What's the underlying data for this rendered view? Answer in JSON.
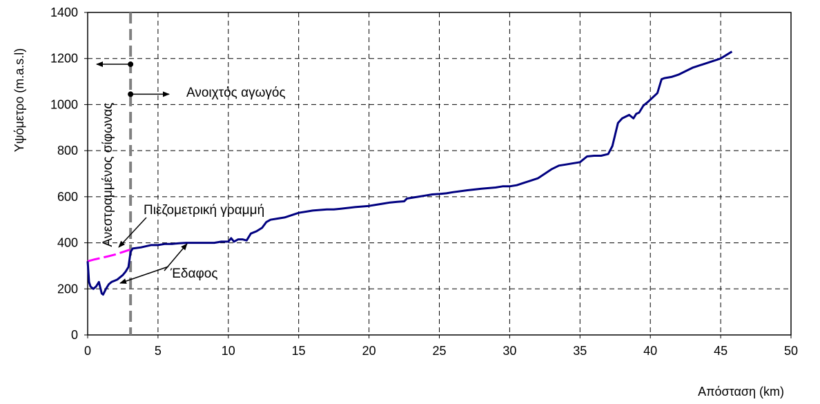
{
  "colors": {
    "ground": "#000080",
    "piezometric": "#ff00ff",
    "divider": "#808080",
    "axis": "#000000",
    "background": "#ffffff"
  },
  "chart_data": {
    "type": "line",
    "title": "",
    "xlabel": "Απόσταση (km)",
    "ylabel": "Υψόμετρο (m.a.s.l)",
    "xlim": [
      0,
      50
    ],
    "ylim": [
      0,
      1400
    ],
    "xticks": [
      "0",
      "5",
      "10",
      "15",
      "20",
      "25",
      "30",
      "35",
      "40",
      "45",
      "50"
    ],
    "yticks": [
      "0",
      "200",
      "400",
      "600",
      "800",
      "1000",
      "1200",
      "1400"
    ],
    "grid": true,
    "series": [
      {
        "name": "Έδαφος",
        "color": "#000080",
        "x": [
          0,
          0.1,
          0.2,
          0.4,
          0.6,
          0.8,
          1.0,
          1.1,
          1.3,
          1.5,
          1.7,
          1.9,
          2.1,
          2.3,
          2.5,
          2.7,
          2.9,
          3.05,
          3.2,
          3.8,
          4.5,
          5.0,
          5.5,
          6.0,
          6.5,
          7.0,
          7.5,
          8.0,
          9.0,
          9.5,
          10.0,
          10.2,
          10.4,
          10.7,
          11.0,
          11.3,
          11.6,
          12.0,
          12.4,
          12.7,
          13.0,
          13.5,
          14.0,
          15.0,
          16.0,
          17.0,
          17.5,
          18.0,
          19.0,
          20.0,
          20.5,
          21.0,
          21.5,
          22.0,
          22.5,
          22.7,
          23.0,
          23.5,
          24.0,
          24.5,
          25.0,
          25.5,
          26.0,
          27.0,
          28.0,
          29.0,
          29.5,
          30.0,
          30.5,
          31.0,
          32.0,
          32.5,
          33.0,
          33.5,
          34.0,
          35.0,
          35.5,
          36.0,
          36.5,
          37.0,
          37.3,
          37.7,
          38.0,
          38.5,
          38.8,
          39.0,
          39.2,
          39.5,
          39.6,
          39.8,
          40.5,
          40.8,
          41.0,
          41.5,
          42.0,
          42.5,
          43.0,
          44.0,
          45.0,
          45.8
        ],
        "y": [
          320,
          230,
          210,
          200,
          210,
          230,
          180,
          175,
          200,
          220,
          230,
          235,
          240,
          250,
          260,
          275,
          295,
          360,
          375,
          380,
          390,
          390,
          395,
          395,
          398,
          400,
          400,
          400,
          400,
          405,
          405,
          420,
          405,
          415,
          415,
          410,
          440,
          450,
          465,
          490,
          500,
          505,
          510,
          530,
          540,
          545,
          545,
          548,
          555,
          560,
          565,
          570,
          575,
          578,
          580,
          592,
          595,
          600,
          605,
          610,
          612,
          615,
          620,
          628,
          635,
          640,
          645,
          645,
          650,
          660,
          680,
          700,
          720,
          735,
          740,
          750,
          775,
          778,
          778,
          785,
          820,
          920,
          940,
          955,
          940,
          960,
          965,
          995,
          1000,
          1010,
          1050,
          1110,
          1115,
          1120,
          1130,
          1145,
          1160,
          1180,
          1200,
          1230
        ]
      },
      {
        "name": "Πιεζομετρική γραμμή",
        "color": "#ff00ff",
        "x": [
          0,
          0.5,
          1.0,
          1.5,
          2.0,
          2.5,
          3.0
        ],
        "y": [
          320,
          328,
          335,
          342,
          350,
          360,
          370
        ]
      }
    ],
    "divider_x": 3.05,
    "annotations": {
      "siphon": "Ανεστραμμένος σίφωνας",
      "open_channel": "Ανοιχτός αγωγός",
      "piezometric": "Πιεζομετρική γραμμή",
      "ground": "Έδαφος"
    }
  }
}
